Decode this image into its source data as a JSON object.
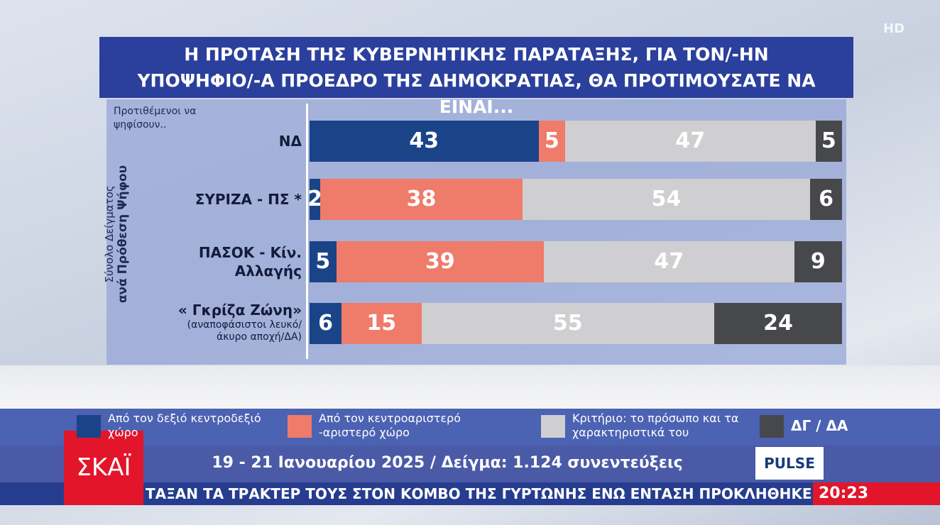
{
  "chart_data": {
    "type": "stacked_hbar",
    "title": "Η ΠΡΟΤΑΣΗ ΤΗΣ ΚΥΒΕΡΝΗΤΙΚΗΣ ΠΑΡΑΤΑΞΗΣ, ΓΙΑ ΤΟΝ/-ΗΝ ΥΠΟΨΗΦΙΟ/-Α ΠΡΟΕΔΡΟ ΤΗΣ ΔΗΜΟΚΡΑΤΙΑΣ, ΘΑ ΠΡΟΤΙΜΟΥΣΑΤΕ ΝΑ ΕΙΝΑΙ...",
    "category_header": "Προτιθέμενοι να ψηφίσουν..",
    "side_label": [
      "Σύνολο Δείγματος",
      "ανά Πρόθεση Ψήφου"
    ],
    "categories": [
      "ΝΔ",
      "ΣΥΡΙΖΑ - ΠΣ *",
      "ΠΑΣΟΚ - Κίν. Αλλαγής",
      "« Γκρίζα Ζώνη»"
    ],
    "category_notes": [
      null,
      null,
      null,
      "(αναποφάσιστοι λευκό/άκυρο αποχή/ΔΑ)"
    ],
    "xlim": [
      0,
      100
    ],
    "series": [
      {
        "name": "Από τον δεξιό κεντροδεξιό χώρο",
        "color": "#1b4488",
        "values": [
          43,
          2,
          5,
          6
        ]
      },
      {
        "name": "Από τον κεντροαριστερό -αριστερό χώρο",
        "color": "#ef7b6b",
        "values": [
          5,
          38,
          39,
          15
        ]
      },
      {
        "name": "Κριτήριο: το πρόσωπο και τα χαρακτηριστικά του",
        "color": "#cfcfd1",
        "values": [
          47,
          54,
          47,
          55
        ]
      },
      {
        "name": "ΔΓ / ΔΑ",
        "color": "#47484c",
        "values": [
          5,
          6,
          9,
          24
        ]
      }
    ],
    "legend": "bottom"
  },
  "broadcast": {
    "footer": "19 - 21 Ιανουαρίου 2025 / Δείγμα: 1.124 συνεντεύξεις",
    "channel": "ΣΚΑΪ",
    "pollster": "PULSE",
    "quality": "HD",
    "ticker": "ΤΑΞΑΝ ΤΑ ΤΡΑΚΤΕΡ ΤΟΥΣ ΣΤΟΝ ΚΟΜΒΟ ΤΗΣ ΓΥΡΤΩΝΗΣ ΕΝΩ ΕΝΤΑΣΗ ΠΡΟΚΛΗΘΗΚΕ ΝΩΡΙΤΕΡ",
    "time": "20:23"
  }
}
